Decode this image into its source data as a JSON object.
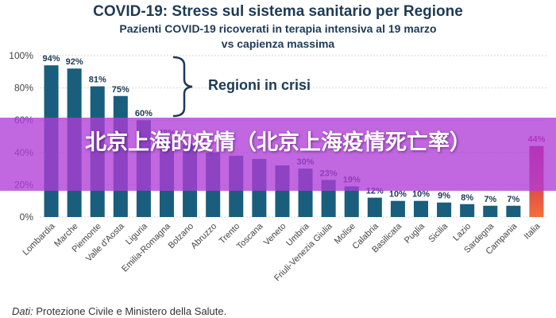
{
  "chart_data": {
    "type": "bar",
    "title": "COVID-19: Stress sul sistema sanitario per Regione",
    "subtitle": [
      "Pazienti COVID-19 ricoverati in terapia intensiva al 19 marzo",
      "vs capienza massima"
    ],
    "categories": [
      "Lombardia",
      "Marche",
      "Piemonte",
      "Valle d'Aosta",
      "Liguria",
      "Emilia-Romagna",
      "Bolzano",
      "Abruzzo",
      "Trento",
      "Toscana",
      "Veneto",
      "Umbria",
      "Friuli-Venezia Giulia",
      "Molise",
      "Calabria",
      "Basilicata",
      "Puglia",
      "Sicilia",
      "Lazio",
      "Sardegna",
      "Campania",
      "Italia"
    ],
    "values": [
      94,
      92,
      81,
      75,
      60,
      48,
      45,
      40,
      38,
      36,
      32,
      30,
      23,
      19,
      12,
      10,
      10,
      9,
      8,
      7,
      7,
      44
    ],
    "visible_value_labels": [
      "94%",
      "92%",
      "81%",
      "75%",
      "60%",
      "48%",
      "",
      "",
      "",
      "",
      "",
      "30%",
      "23%",
      "19%",
      "12%",
      "10%",
      "10%",
      "9%",
      "8%",
      "7%",
      "7%",
      "44%"
    ],
    "yticks": [
      "0%",
      "20%",
      "40%",
      "60%",
      "80%",
      "100%"
    ],
    "ylim": [
      0,
      100
    ],
    "grid": true,
    "annotation": "Regioni in crisi",
    "colors": {
      "bar": "#1a5e7d",
      "highlight_top": "#c2185b",
      "highlight_bottom": "#f36f3a",
      "text": "#1d3a55",
      "grid": "#d6d6d6"
    }
  },
  "source": {
    "prefix": "Dati:",
    "text": " Protezione Civile e Ministero della Salute."
  },
  "overlay": {
    "title": "北京上海的疫情（北京上海疫情死亡率）"
  }
}
